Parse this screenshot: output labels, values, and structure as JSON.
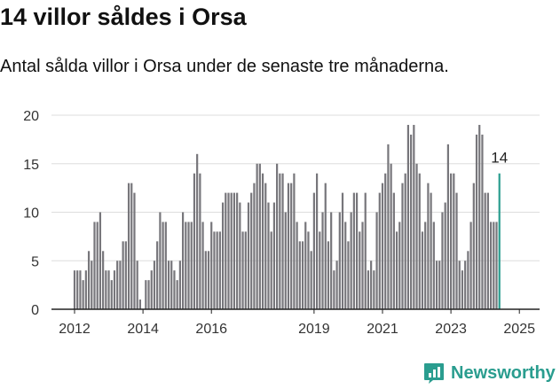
{
  "title": "14 villor såldes i Orsa",
  "subtitle": "Antal sålda villor i Orsa under de senaste tre månaderna.",
  "brand": "Newsworthy",
  "colors": {
    "bar": "#77767b",
    "highlight": "#2a9d8f",
    "grid": "#dddddd",
    "axis": "#222222"
  },
  "chart_data": {
    "type": "bar",
    "title": "14 villor såldes i Orsa",
    "xlabel": "",
    "ylabel": "",
    "ylim": [
      0,
      20
    ],
    "yticks": [
      0,
      5,
      10,
      15,
      20
    ],
    "x_start": "2012-01",
    "xticks": [
      "2012",
      "2014",
      "2016",
      "2019",
      "2021",
      "2023",
      "2025"
    ],
    "xtick_months": [
      0,
      24,
      48,
      84,
      108,
      132,
      156
    ],
    "series": [
      {
        "name": "Antal sålda villor (rullande 3 mån)",
        "values": [
          4,
          4,
          4,
          3,
          4,
          6,
          5,
          9,
          9,
          10,
          6,
          4,
          4,
          3,
          4,
          5,
          5,
          7,
          7,
          13,
          13,
          12,
          5,
          1,
          0,
          3,
          3,
          4,
          5,
          7,
          10,
          9,
          9,
          5,
          5,
          4,
          3,
          5,
          10,
          9,
          9,
          9,
          14,
          16,
          14,
          9,
          6,
          6,
          9,
          8,
          8,
          8,
          11,
          12,
          12,
          12,
          12,
          12,
          11,
          8,
          8,
          11,
          12,
          13,
          15,
          15,
          14,
          13,
          11,
          8,
          11,
          15,
          14,
          14,
          10,
          13,
          13,
          14,
          9,
          7,
          7,
          9,
          8,
          6,
          12,
          14,
          8,
          10,
          13,
          7,
          10,
          4,
          5,
          10,
          12,
          9,
          7,
          10,
          12,
          12,
          8,
          9,
          12,
          4,
          5,
          4,
          10,
          12,
          13,
          14,
          17,
          15,
          12,
          8,
          9,
          13,
          14,
          19,
          18,
          19,
          15,
          14,
          8,
          9,
          13,
          12,
          9,
          5,
          5,
          10,
          11,
          17,
          14,
          14,
          12,
          5,
          4,
          5,
          6,
          9,
          13,
          18,
          19,
          18,
          12,
          12,
          9,
          9,
          9,
          14
        ]
      }
    ],
    "highlight_last": true,
    "annotation": "14"
  }
}
